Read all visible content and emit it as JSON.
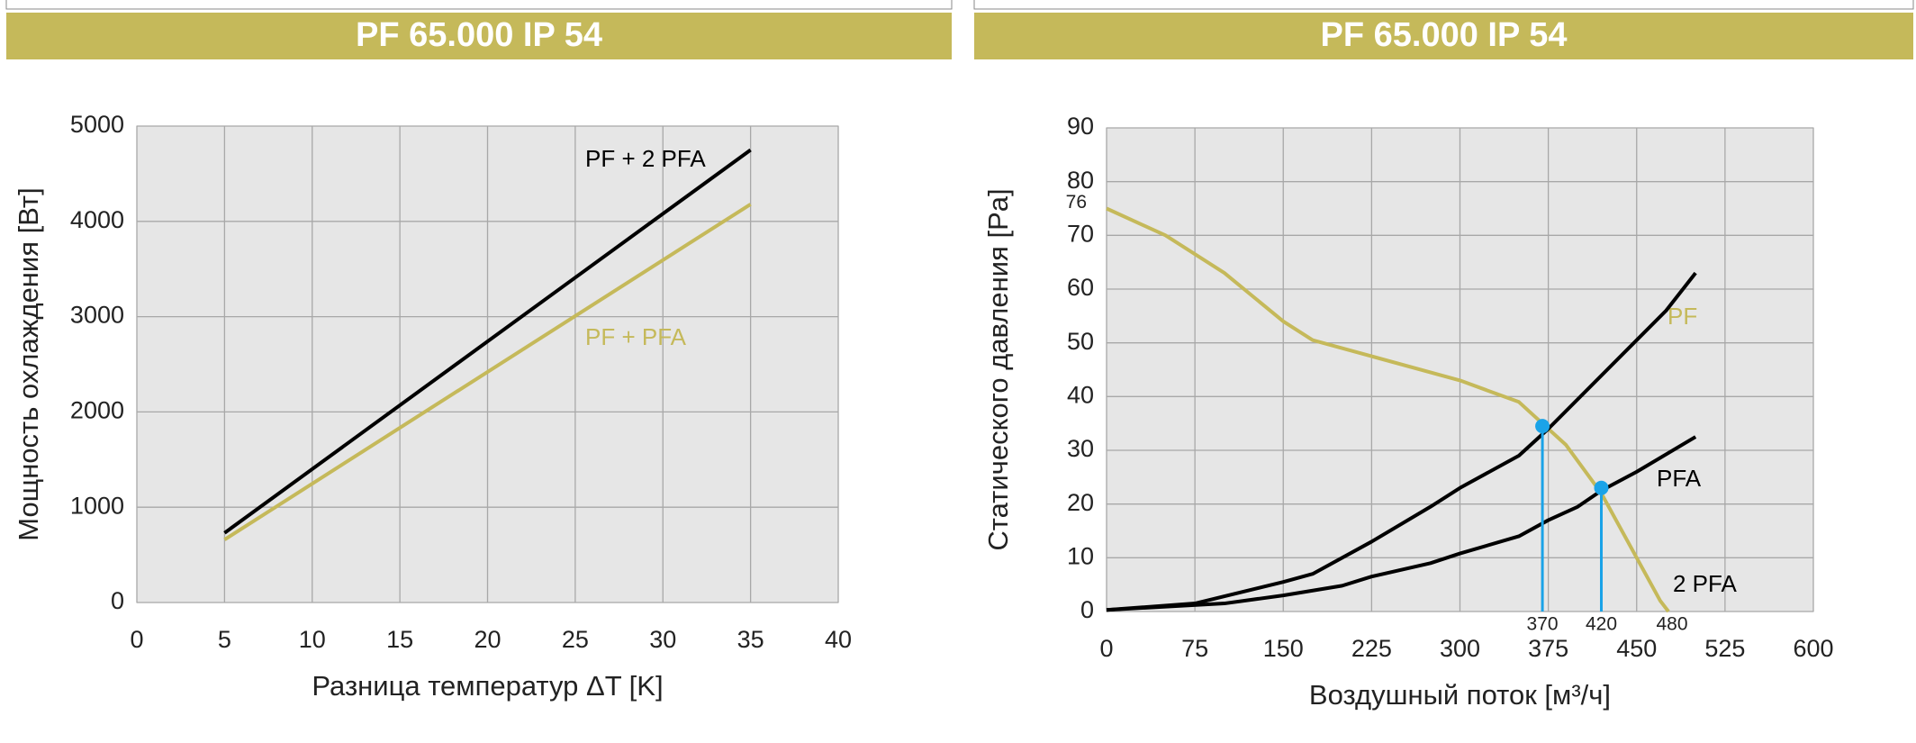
{
  "chart_data": [
    {
      "type": "line",
      "title": "PF 65.000 IP 54",
      "x_label": "Разница температур ΔT [K]",
      "y_label": "Мощность охлаждения [Вт]",
      "xlim": [
        0,
        40
      ],
      "xticks": [
        0,
        5,
        10,
        15,
        20,
        25,
        30,
        35,
        40
      ],
      "ylim": [
        0,
        5000
      ],
      "yticks": [
        0,
        1000,
        2000,
        3000,
        4000,
        5000
      ],
      "grid": true,
      "series": [
        {
          "name": "PF + 2 PFA",
          "color": "#000000",
          "x": [
            5,
            35
          ],
          "values": [
            730,
            4750
          ]
        },
        {
          "name": "PF + PFA",
          "color": "#c5b95a",
          "x": [
            5,
            35
          ],
          "values": [
            660,
            4180
          ]
        }
      ]
    },
    {
      "type": "line",
      "title": "PF 65.000 IP 54",
      "x_label": "Воздушный поток [м³/ч]",
      "y_label": "Статического давления [Pa]",
      "xlim": [
        0,
        600
      ],
      "xticks": [
        0,
        75,
        150,
        225,
        300,
        375,
        450,
        525,
        600
      ],
      "ylim": [
        0,
        90
      ],
      "yticks": [
        0,
        10,
        20,
        30,
        40,
        50,
        60,
        70,
        80,
        90
      ],
      "grid": true,
      "y_annotations": [
        76
      ],
      "x_annotations": [
        370,
        420,
        480
      ],
      "series": [
        {
          "name": "PF",
          "color": "#c5b95a",
          "x": [
            0,
            50,
            100,
            150,
            175,
            225,
            300,
            350,
            370,
            390,
            420,
            450,
            470,
            477
          ],
          "values": [
            75,
            70,
            63,
            54,
            50.5,
            47.5,
            43,
            39,
            35,
            31,
            22,
            10,
            2,
            0
          ]
        },
        {
          "name": "PFA",
          "color": "#000000",
          "x": [
            0,
            75,
            150,
            175,
            225,
            275,
            300,
            350,
            375,
            425,
            475,
            500
          ],
          "values": [
            0.3,
            1.5,
            5.5,
            7,
            13,
            19.5,
            23,
            29,
            34,
            45,
            56,
            63
          ]
        },
        {
          "name": "2 PFA",
          "color": "#000000",
          "x": [
            0,
            100,
            150,
            200,
            225,
            275,
            300,
            350,
            375,
            400,
            420,
            450,
            500
          ],
          "values": [
            0.3,
            1.5,
            3,
            4.8,
            6.5,
            9,
            10.8,
            14,
            17,
            19.5,
            22.5,
            26,
            32.5
          ]
        }
      ],
      "operating_points": {
        "color": "#1aa3e8",
        "x": [
          370,
          420
        ],
        "values": [
          34.5,
          23
        ]
      }
    }
  ]
}
